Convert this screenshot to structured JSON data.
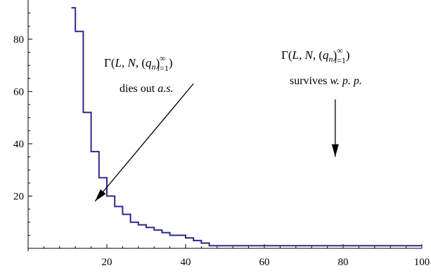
{
  "chart_data": {
    "type": "line",
    "title": "",
    "xlabel": "",
    "ylabel": "",
    "xlim": [
      0,
      100
    ],
    "ylim": [
      0,
      95
    ],
    "grid": false,
    "x_ticks": [
      20,
      40,
      60,
      80,
      100
    ],
    "y_ticks": [
      20,
      40,
      60,
      80
    ],
    "x_tick_labels": [
      "20",
      "40",
      "60",
      "80",
      "100"
    ],
    "y_tick_labels": [
      "20",
      "40",
      "60",
      "80"
    ],
    "series": [
      {
        "color": "#2a2a8c",
        "step": true,
        "x": [
          11,
          12,
          14,
          16,
          18,
          20,
          22,
          24,
          26,
          28,
          30,
          32,
          34,
          36,
          38,
          40,
          42,
          44,
          46,
          50,
          56,
          66,
          77,
          100
        ],
        "y": [
          92,
          83,
          52,
          37,
          27,
          20,
          16,
          13,
          10,
          9,
          8,
          7,
          6,
          5,
          5,
          4,
          3,
          2,
          1,
          1,
          1,
          1,
          1,
          1
        ]
      }
    ],
    "annotations": [
      {
        "id": "dies-out",
        "line1": "Γ(L, N, (q_n)_{i=1}^∞)",
        "line2_prefix": "dies out ",
        "line2_italic": "a.s.",
        "arrow_from": [
          42,
          63
        ],
        "arrow_to": [
          17,
          18
        ]
      },
      {
        "id": "survives",
        "line1": "Γ(L, N, (q_n)_{i=1}^∞)",
        "line2_prefix": "survives ",
        "line2_italic": "w. p. p.",
        "arrow_from": [
          78,
          57
        ],
        "arrow_to": [
          78,
          35
        ]
      }
    ]
  }
}
